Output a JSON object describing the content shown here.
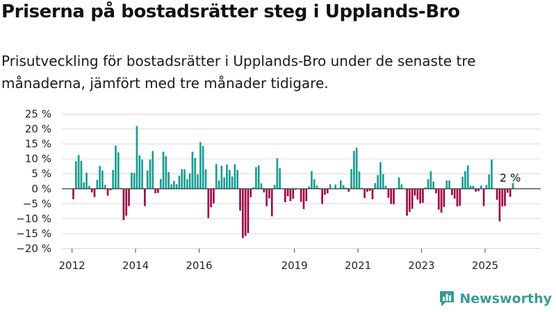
{
  "header": {
    "title": "Priserna på bostadsrätter steg i Upplands-Bro",
    "subtitle": "Prisutveckling för bostadsrätter i Upplands-Bro under de senaste tre månaderna, jämfört med tre månader tidigare."
  },
  "brand": {
    "name": "Newsworthy",
    "icon": "newsworthy-logo-icon"
  },
  "colors": {
    "positive": "#1a9e95",
    "negative": "#9c0b4a",
    "grid": "#d9d9d9",
    "zero_line": "#333333"
  },
  "chart_data": {
    "type": "bar",
    "title": "",
    "xlabel": "",
    "ylabel": "",
    "ylim": [
      -20,
      25
    ],
    "yticks": [
      -20,
      -15,
      -10,
      -5,
      0,
      5,
      10,
      15,
      20,
      25
    ],
    "ytick_labels": [
      "−20 %",
      "−15 %",
      "−10 %",
      "−5 %",
      "0 %",
      "5 %",
      "10 %",
      "15 %",
      "20 %",
      "25 %"
    ],
    "xticks": [
      2012,
      2014,
      2016,
      2019,
      2021,
      2023,
      2025
    ],
    "xtick_labels": [
      "2012",
      "2014",
      "2016",
      "2019",
      "2021",
      "2023",
      "2025"
    ],
    "x_start": "2012-01",
    "x_step": "month",
    "grid": true,
    "values": [
      -3.5,
      9.2,
      11.3,
      9.3,
      2.2,
      5.4,
      1.0,
      -1.2,
      -2.8,
      3.0,
      7.6,
      6.1,
      1.3,
      -2.3,
      -0.5,
      6.3,
      14.5,
      12.2,
      0.3,
      -10.5,
      -9.0,
      -5.8,
      5.4,
      5.3,
      21.0,
      11.2,
      9.8,
      -5.8,
      6.1,
      9.8,
      12.6,
      -1.5,
      -1.4,
      3.3,
      12.4,
      10.9,
      5.6,
      1.5,
      2.6,
      1.5,
      4.4,
      6.6,
      6.5,
      3.2,
      5.1,
      12.4,
      10.3,
      4.8,
      15.6,
      14.3,
      6.5,
      -9.8,
      -6.2,
      -4.9,
      8.3,
      2.8,
      7.7,
      3.8,
      8.1,
      6.3,
      4.1,
      8.2,
      6.3,
      -7.3,
      -16.5,
      -15.8,
      -14.8,
      -2.8,
      0.5,
      7.2,
      7.8,
      1.8,
      -1.2,
      -5.8,
      -3.2,
      -9.2,
      1.3,
      10.2,
      6.9,
      0.1,
      -4.5,
      -2.5,
      -4.1,
      -3.3,
      -0.3,
      0.1,
      -4.3,
      -6.8,
      -4.1,
      0.8,
      5.9,
      3.2,
      1.1,
      0.3,
      -5.1,
      -2.0,
      -1.5,
      1.5,
      0.1,
      1.4,
      0.2,
      2.8,
      1.2,
      0.4,
      -1.0,
      6.6,
      12.6,
      13.7,
      5.8,
      0.3,
      -3.1,
      -1.0,
      -0.7,
      -3.5,
      1.9,
      4.6,
      8.9,
      4.9,
      1.0,
      -3.0,
      -5.1,
      -5.2,
      0.2,
      3.8,
      1.5,
      0.1,
      -9.0,
      -7.7,
      -6.7,
      -2.2,
      -3.6,
      -4.9,
      -4.7,
      0.5,
      3.2,
      5.9,
      2.4,
      -1.5,
      -7.0,
      -8.0,
      -6.1,
      2.8,
      2.8,
      -2.1,
      -3.3,
      -5.9,
      -5.7,
      4.0,
      5.9,
      7.8,
      1.0,
      1.0,
      -1.0,
      -0.8,
      1.1,
      -5.8,
      1.3,
      4.8,
      9.8,
      0.1,
      -3.7,
      -10.9,
      -5.9,
      -5.8,
      -1.3,
      -2.7,
      1.9
    ],
    "annotation": {
      "text": "2 %",
      "month_index": 165
    }
  }
}
